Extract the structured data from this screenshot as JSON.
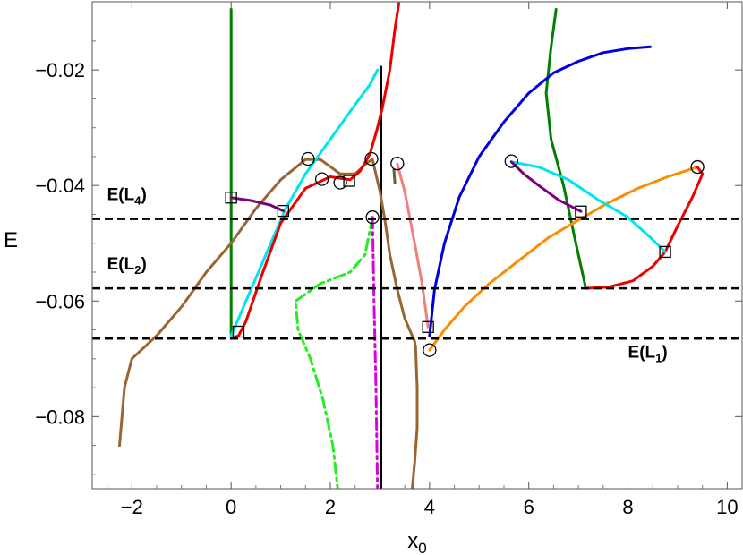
{
  "chart_data": {
    "type": "line",
    "xlabel": "x",
    "xlabel_sub": "0",
    "ylabel": "E",
    "xlim": [
      -2.8,
      10.3
    ],
    "ylim": [
      -0.0925,
      -0.0082
    ],
    "x_ticks": [
      -2,
      0,
      2,
      4,
      6,
      8,
      10
    ],
    "x_tick_labels": [
      "−2",
      "0",
      "2",
      "4",
      "6",
      "8",
      "10"
    ],
    "y_ticks": [
      -0.08,
      -0.06,
      -0.04,
      -0.02
    ],
    "y_tick_labels": [
      "−0.08",
      "−0.06",
      "−0.04",
      "−0.02"
    ],
    "grid": false,
    "levels": [
      {
        "text": "E(L",
        "sub": "1",
        "close": ")",
        "y": -0.0665,
        "label_x": 8.0,
        "label_y": -0.0698
      },
      {
        "text": "E(L",
        "sub": "2",
        "close": ")",
        "y": -0.0578,
        "label_x": -2.5,
        "label_y": -0.0545
      },
      {
        "text": "E(L",
        "sub": "4",
        "close": ")",
        "y": -0.0458,
        "label_x": -2.5,
        "label_y": -0.0425
      }
    ],
    "series": [
      {
        "color": "#008000",
        "width": 3,
        "points": [
          [
            0.0,
            -0.0095
          ],
          [
            0.0,
            -0.066
          ]
        ]
      },
      {
        "color": "#008000",
        "width": 3,
        "points": [
          [
            6.55,
            -0.0095
          ],
          [
            6.45,
            -0.016
          ],
          [
            6.35,
            -0.024
          ],
          [
            6.45,
            -0.032
          ],
          [
            6.7,
            -0.04
          ],
          [
            6.95,
            -0.05
          ],
          [
            7.15,
            -0.0578
          ]
        ]
      },
      {
        "color": "#000000",
        "width": 3,
        "points": [
          [
            3.02,
            -0.0195
          ],
          [
            3.02,
            -0.0925
          ]
        ]
      },
      {
        "color": "#996633",
        "width": 3,
        "points": [
          [
            -2.25,
            -0.085
          ],
          [
            -2.15,
            -0.075
          ],
          [
            -2.0,
            -0.07
          ],
          [
            -1.5,
            -0.066
          ],
          [
            -1.0,
            -0.061
          ],
          [
            -0.5,
            -0.055
          ],
          [
            0.0,
            -0.05
          ],
          [
            0.5,
            -0.044
          ],
          [
            1.0,
            -0.039
          ],
          [
            1.5,
            -0.0355
          ],
          [
            1.8,
            -0.0355
          ],
          [
            2.2,
            -0.038
          ],
          [
            2.5,
            -0.038
          ],
          [
            2.75,
            -0.036
          ],
          [
            2.85,
            -0.0355
          ],
          [
            3.0,
            -0.041
          ],
          [
            3.1,
            -0.046
          ],
          [
            3.2,
            -0.052
          ],
          [
            3.35,
            -0.058
          ],
          [
            3.5,
            -0.063
          ],
          [
            3.7,
            -0.067
          ],
          [
            3.72,
            -0.068
          ],
          [
            3.75,
            -0.075
          ],
          [
            3.75,
            -0.082
          ],
          [
            3.7,
            -0.088
          ],
          [
            3.65,
            -0.0925
          ]
        ]
      },
      {
        "color": "#00E5EE",
        "width": 3,
        "points": [
          [
            0.0,
            -0.066
          ],
          [
            0.2,
            -0.062
          ],
          [
            0.5,
            -0.056
          ],
          [
            0.8,
            -0.05
          ],
          [
            1.1,
            -0.044
          ],
          [
            1.5,
            -0.038
          ],
          [
            2.0,
            -0.032
          ],
          [
            2.5,
            -0.026
          ],
          [
            2.8,
            -0.0225
          ],
          [
            2.95,
            -0.02
          ]
        ]
      },
      {
        "color": "#ee0000",
        "width": 3,
        "points": [
          [
            0.0,
            -0.0665
          ],
          [
            0.15,
            -0.066
          ],
          [
            0.3,
            -0.0635
          ],
          [
            0.6,
            -0.056
          ],
          [
            1.0,
            -0.0465
          ],
          [
            1.5,
            -0.0405
          ],
          [
            2.0,
            -0.0385
          ],
          [
            2.4,
            -0.039
          ],
          [
            2.6,
            -0.0375
          ],
          [
            2.8,
            -0.0345
          ],
          [
            2.95,
            -0.03
          ],
          [
            3.05,
            -0.0265
          ],
          [
            3.2,
            -0.02
          ],
          [
            3.3,
            -0.013
          ],
          [
            3.38,
            -0.0085
          ]
        ]
      },
      {
        "color": "#0000dd",
        "width": 3,
        "points": [
          [
            4.0,
            -0.066
          ],
          [
            4.1,
            -0.058
          ],
          [
            4.3,
            -0.05
          ],
          [
            4.6,
            -0.042
          ],
          [
            5.0,
            -0.035
          ],
          [
            5.5,
            -0.029
          ],
          [
            6.0,
            -0.024
          ],
          [
            6.5,
            -0.0205
          ],
          [
            7.0,
            -0.0185
          ],
          [
            7.5,
            -0.017
          ],
          [
            8.0,
            -0.0163
          ],
          [
            8.45,
            -0.016
          ]
        ]
      },
      {
        "color": "#ff8c00",
        "width": 3,
        "points": [
          [
            4.0,
            -0.0685
          ],
          [
            4.3,
            -0.065
          ],
          [
            4.7,
            -0.061
          ],
          [
            5.2,
            -0.057
          ],
          [
            5.8,
            -0.053
          ],
          [
            6.4,
            -0.049
          ],
          [
            7.0,
            -0.046
          ],
          [
            7.6,
            -0.043
          ],
          [
            8.2,
            -0.0405
          ],
          [
            8.8,
            -0.0385
          ],
          [
            9.4,
            -0.0368
          ]
        ]
      },
      {
        "color": "#ee0000",
        "width": 3,
        "points": [
          [
            7.15,
            -0.0578
          ],
          [
            7.6,
            -0.0576
          ],
          [
            8.1,
            -0.0565
          ],
          [
            8.5,
            -0.054
          ],
          [
            8.75,
            -0.0515
          ],
          [
            9.0,
            -0.047
          ],
          [
            9.3,
            -0.042
          ],
          [
            9.5,
            -0.038
          ],
          [
            9.4,
            -0.0368
          ]
        ]
      },
      {
        "color": "#00E5EE",
        "width": 3,
        "points": [
          [
            5.65,
            -0.0359
          ],
          [
            6.2,
            -0.0368
          ],
          [
            6.8,
            -0.039
          ],
          [
            7.4,
            -0.0425
          ],
          [
            8.0,
            -0.0455
          ],
          [
            8.45,
            -0.049
          ],
          [
            8.75,
            -0.0515
          ]
        ]
      },
      {
        "color": "#7b007b",
        "width": 3,
        "points": [
          [
            5.65,
            -0.0359
          ],
          [
            5.9,
            -0.038
          ],
          [
            6.2,
            -0.04
          ],
          [
            6.6,
            -0.0425
          ],
          [
            7.05,
            -0.0445
          ]
        ]
      },
      {
        "color": "#7b007b",
        "width": 3,
        "points": [
          [
            0.0,
            -0.0421
          ],
          [
            0.4,
            -0.0426
          ],
          [
            0.8,
            -0.0434
          ],
          [
            1.05,
            -0.0444
          ]
        ]
      },
      {
        "color": "#f08080",
        "width": 3,
        "points": [
          [
            3.35,
            -0.0363
          ],
          [
            3.5,
            -0.041
          ],
          [
            3.7,
            -0.05
          ],
          [
            3.85,
            -0.057
          ],
          [
            3.97,
            -0.0645
          ]
        ]
      },
      {
        "color": "#556b2f",
        "width": 3,
        "points": [
          [
            3.28,
            -0.0373
          ],
          [
            3.3,
            -0.0395
          ]
        ]
      },
      {
        "color": "#22ee22",
        "width": 3,
        "dash": "12,5,3,5",
        "points": [
          [
            2.85,
            -0.0455
          ],
          [
            2.7,
            -0.052
          ],
          [
            2.4,
            -0.055
          ],
          [
            1.8,
            -0.057
          ],
          [
            1.3,
            -0.06
          ],
          [
            1.35,
            -0.065
          ],
          [
            1.6,
            -0.07
          ],
          [
            1.85,
            -0.077
          ],
          [
            2.05,
            -0.085
          ],
          [
            2.15,
            -0.0925
          ]
        ]
      },
      {
        "color": "#dd00dd",
        "width": 3,
        "dash": "12,5,3,5",
        "points": [
          [
            2.85,
            -0.0455
          ],
          [
            2.88,
            -0.06
          ],
          [
            2.92,
            -0.075
          ],
          [
            2.95,
            -0.0925
          ]
        ]
      }
    ],
    "circle_markers": [
      [
        1.55,
        -0.0354
      ],
      [
        1.83,
        -0.0389
      ],
      [
        2.2,
        -0.0395
      ],
      [
        2.83,
        -0.0354
      ],
      [
        3.35,
        -0.0362
      ],
      [
        4.0,
        -0.0685
      ],
      [
        2.85,
        -0.0455
      ],
      [
        5.65,
        -0.0358
      ],
      [
        9.4,
        -0.0368
      ]
    ],
    "square_markers": [
      [
        0.0,
        -0.0421
      ],
      [
        1.05,
        -0.0444
      ],
      [
        2.38,
        -0.0392
      ],
      [
        0.15,
        -0.0653
      ],
      [
        3.97,
        -0.0645
      ],
      [
        7.05,
        -0.0445
      ],
      [
        8.75,
        -0.0515
      ]
    ]
  }
}
